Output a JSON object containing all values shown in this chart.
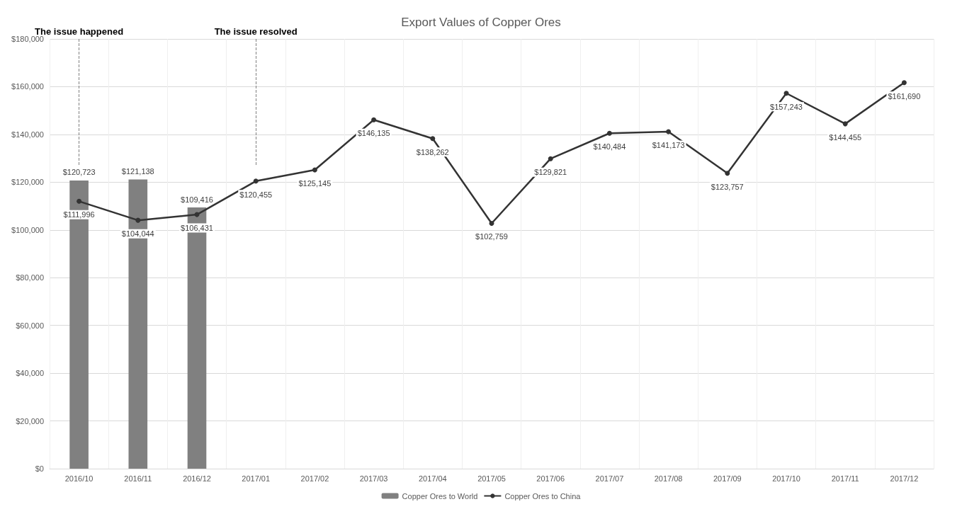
{
  "chart_data": {
    "type": "bar",
    "title": "Export Values of Copper Ores",
    "categories": [
      "2016/10",
      "2016/11",
      "2016/12",
      "2017/01",
      "2017/02",
      "2017/03",
      "2017/04",
      "2017/05",
      "2017/06",
      "2017/07",
      "2017/08",
      "2017/09",
      "2017/10",
      "2017/11",
      "2017/12"
    ],
    "series": [
      {
        "name": "Copper Ores to World",
        "color": "#808080",
        "values": [
          120723,
          121138,
          109416,
          null,
          null,
          null,
          null,
          null,
          null,
          null,
          null,
          null,
          null,
          null,
          null
        ],
        "value_labels": [
          "$120,723",
          "$121,138",
          "$109,416",
          null,
          null,
          null,
          null,
          null,
          null,
          null,
          null,
          null,
          null,
          null,
          null
        ]
      },
      {
        "name": "Copper Ores to China",
        "type": "line",
        "color": "#333333",
        "values": [
          111996,
          104044,
          106431,
          120455,
          125145,
          146135,
          138262,
          102759,
          129821,
          140484,
          141173,
          123757,
          157243,
          144455,
          161690
        ],
        "value_labels": [
          "$111,996",
          "$104,044",
          "$106,431",
          "$120,455",
          "$125,145",
          "$146,135",
          "$138,262",
          "$102,759",
          "$129,821",
          "$140,484",
          "$141,173",
          "$123,757",
          "$157,243",
          "$144,455",
          "$161,690"
        ]
      }
    ],
    "ylim": [
      0,
      180000
    ],
    "yticks": [
      {
        "value": 0,
        "label": "$0"
      },
      {
        "value": 20000,
        "label": "$20,000"
      },
      {
        "value": 40000,
        "label": "$40,000"
      },
      {
        "value": 60000,
        "label": "$60,000"
      },
      {
        "value": 80000,
        "label": "$80,000"
      },
      {
        "value": 100000,
        "label": "$100,000"
      },
      {
        "value": 120000,
        "label": "$120,000"
      },
      {
        "value": 140000,
        "label": "$140,000"
      },
      {
        "value": 160000,
        "label": "$160,000"
      },
      {
        "value": 180000,
        "label": "$180,000"
      }
    ],
    "ref_lines": [
      {
        "axis": "x",
        "value": "2016/10",
        "label": "The issue happened",
        "color": "#808080",
        "line_style": "dashed"
      },
      {
        "axis": "x",
        "value": "2017/01",
        "label": "The issue resolved",
        "color": "#808080",
        "line_style": "dashed"
      }
    ],
    "grid": true,
    "legend": "bottom",
    "marker": "circle",
    "line_style": "solid"
  }
}
